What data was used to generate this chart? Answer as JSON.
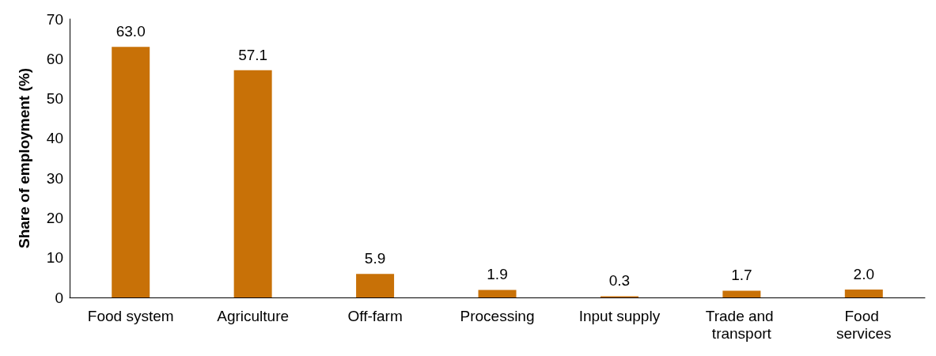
{
  "chart_data": {
    "type": "bar",
    "ylabel": "Share of employment (%)",
    "categories": [
      "Food system",
      "Agriculture",
      "Off-farm",
      "Processing",
      "Input supply",
      "Trade and transport",
      "Food services"
    ],
    "values": [
      63.0,
      57.1,
      5.9,
      1.9,
      0.3,
      1.7,
      2.0
    ],
    "value_labels": [
      "63.0",
      "57.1",
      "5.9",
      "1.9",
      "0.3",
      "1.7",
      "2.0"
    ],
    "color": "#c87107",
    "ylim": [
      0,
      70
    ],
    "yticks": [
      0,
      10,
      20,
      30,
      40,
      50,
      60,
      70
    ],
    "grid": false
  }
}
